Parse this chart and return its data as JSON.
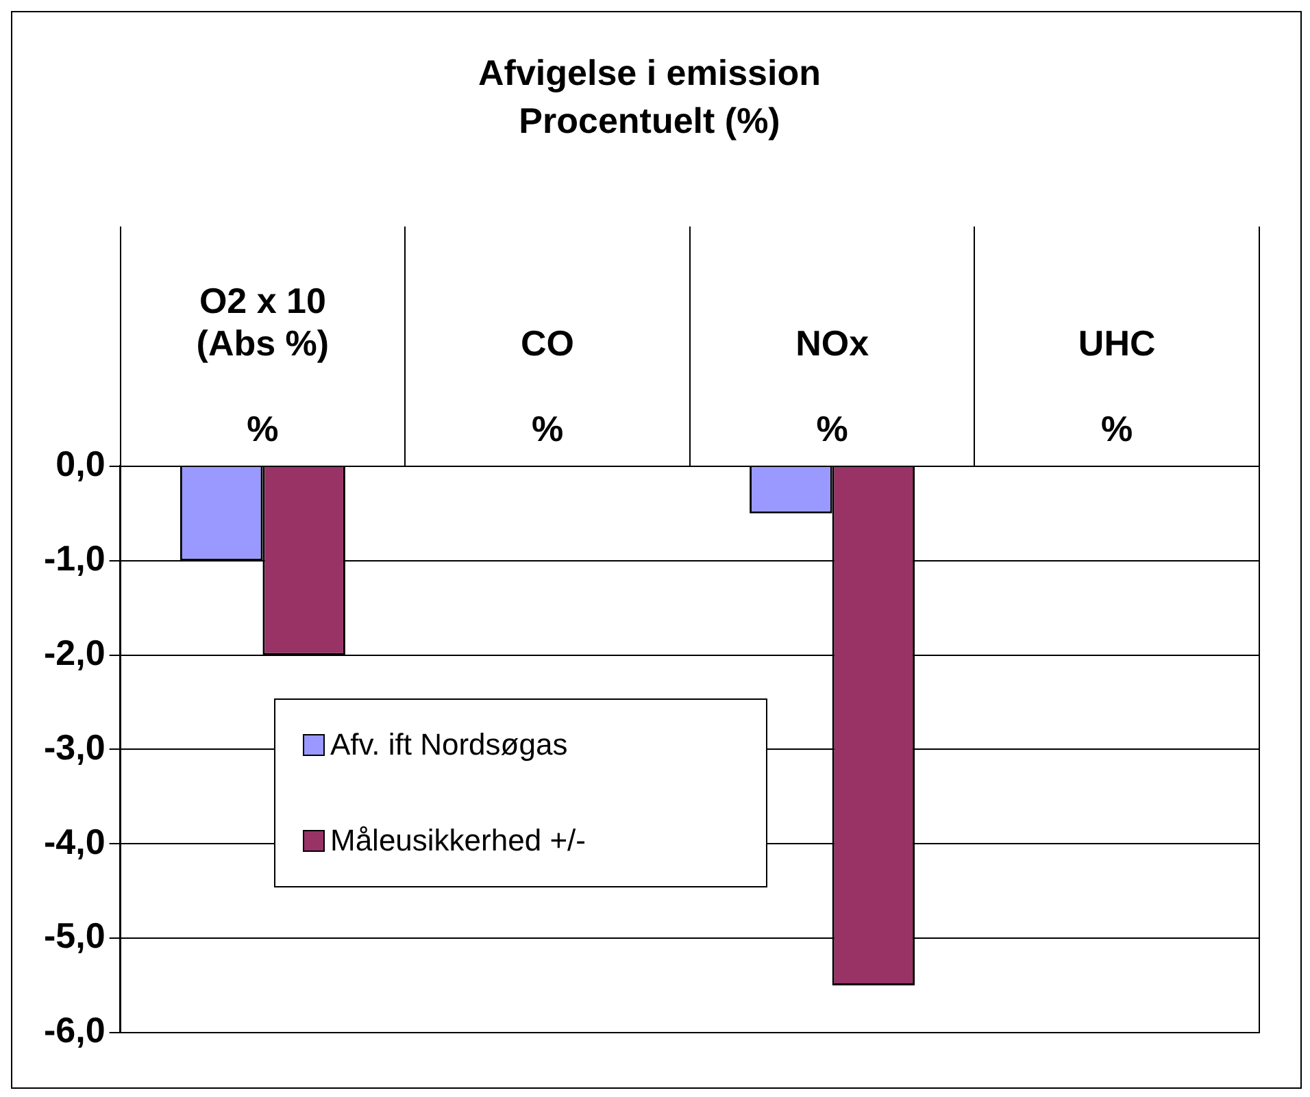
{
  "chart_data": {
    "type": "bar",
    "title": "Afvigelse i emission",
    "subtitle": "Procentuelt (%)",
    "categories": [
      "O2 x 10\n(Abs %)\n\n%",
      "CO\n\n%",
      "NOx\n\n%",
      "UHC\n\n%"
    ],
    "series": [
      {
        "name": "Afv. ift Nordsøgas",
        "color": "#9999ff",
        "values": [
          -1.0,
          0,
          -0.5,
          0
        ]
      },
      {
        "name": "Måleusikkerhed +/-",
        "color": "#993366",
        "values": [
          -2.0,
          0,
          -5.5,
          0
        ]
      }
    ],
    "ylim": [
      -6,
      0
    ],
    "yticks": [
      {
        "value": 0,
        "label": "0,0"
      },
      {
        "value": -1,
        "label": "-1,0"
      },
      {
        "value": -2,
        "label": "-2,0"
      },
      {
        "value": -3,
        "label": "-3,0"
      },
      {
        "value": -4,
        "label": "-4,0"
      },
      {
        "value": -5,
        "label": "-5,0"
      },
      {
        "value": -6,
        "label": "-6,0"
      }
    ],
    "grid": "y",
    "legend": "bottom left"
  }
}
